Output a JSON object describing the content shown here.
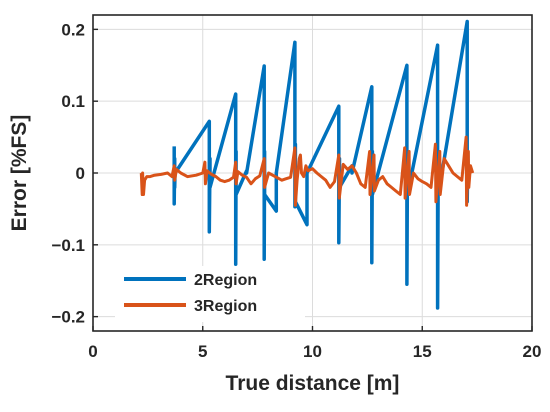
{
  "chart_data": {
    "type": "line",
    "xlabel": "True distance [m]",
    "ylabel": "Error [%FS]",
    "xlim": [
      0,
      20
    ],
    "ylim": [
      -0.22,
      0.22
    ],
    "xticks": [
      0,
      5,
      10,
      15,
      20
    ],
    "yticks": [
      -0.2,
      -0.1,
      0,
      0.1,
      0.2
    ],
    "xtick_labels": [
      "0",
      "5",
      "10",
      "15",
      "20"
    ],
    "ytick_labels": [
      "−0.2",
      "−0.1",
      "0",
      "0.1",
      "0.2"
    ],
    "grid": true,
    "legend_position": "lower-left",
    "series": [
      {
        "name": "2Region",
        "color": "#0072BD",
        "x": [
          3.7,
          3.7,
          3.72,
          3.72,
          3.74,
          3.74,
          5.3,
          5.3,
          5.33,
          5.33,
          6.5,
          6.5,
          6.52,
          6.52,
          7.0,
          7.0,
          7.8,
          7.8,
          7.82,
          7.82,
          8.35,
          8.35,
          9.2,
          9.2,
          9.22,
          9.22,
          9.75,
          9.75,
          11.2,
          11.2,
          11.23,
          11.23,
          11.8,
          11.8,
          12.7,
          12.7,
          12.73,
          12.73,
          14.3,
          14.3,
          14.33,
          14.33,
          15.7,
          15.7,
          15.73,
          15.73,
          17.05,
          17.05,
          17.08,
          17.08
        ],
        "y": [
          0.037,
          -0.043,
          0.02,
          -0.02,
          0.005,
          0.0,
          0.072,
          -0.082,
          0.02,
          -0.02,
          0.11,
          -0.127,
          0.03,
          -0.03,
          0.003,
          0.0,
          0.149,
          -0.12,
          0.03,
          -0.03,
          -0.053,
          0.0,
          0.182,
          -0.047,
          0.04,
          -0.04,
          -0.072,
          0.0,
          0.093,
          -0.097,
          0.02,
          -0.02,
          0.01,
          0.0,
          0.12,
          -0.125,
          0.03,
          -0.03,
          0.15,
          -0.155,
          0.03,
          -0.03,
          0.178,
          -0.188,
          0.03,
          -0.03,
          0.211,
          -0.04,
          0.03,
          0.0
        ]
      },
      {
        "name": "3Region",
        "color": "#D95319",
        "x": [
          2.2,
          2.24,
          2.26,
          2.3,
          2.35,
          2.45,
          2.6,
          2.8,
          3.1,
          3.4,
          3.6,
          3.7,
          3.72,
          3.8,
          4.0,
          4.3,
          4.7,
          5.0,
          5.1,
          5.12,
          5.2,
          5.4,
          5.6,
          5.8,
          6.0,
          6.2,
          6.4,
          6.5,
          6.52,
          6.6,
          6.8,
          7.0,
          7.2,
          7.4,
          7.6,
          7.8,
          7.82,
          8.0,
          8.3,
          8.6,
          8.8,
          9.0,
          9.2,
          9.22,
          9.3,
          9.4,
          9.45,
          9.5,
          9.6,
          9.7,
          9.8,
          10.0,
          10.2,
          10.4,
          10.6,
          10.8,
          11.0,
          11.2,
          11.22,
          11.4,
          11.6,
          11.8,
          12.0,
          12.2,
          12.4,
          12.6,
          12.62,
          12.8,
          12.82,
          13.0,
          13.2,
          13.4,
          13.6,
          13.8,
          14.0,
          14.2,
          14.22,
          14.4,
          14.42,
          14.6,
          14.8,
          15.0,
          15.2,
          15.4,
          15.6,
          15.62,
          15.8,
          15.82,
          16.0,
          16.2,
          16.4,
          16.6,
          16.8,
          17.0,
          17.02,
          17.1,
          17.12,
          17.2,
          17.3
        ],
        "y": [
          0.0,
          -0.03,
          0.0,
          -0.03,
          -0.01,
          -0.005,
          -0.005,
          -0.003,
          -0.002,
          0.0,
          -0.005,
          0.01,
          -0.01,
          0.005,
          0.0,
          -0.005,
          -0.003,
          0.0,
          0.015,
          -0.015,
          0.003,
          -0.002,
          -0.005,
          -0.01,
          -0.012,
          -0.01,
          -0.006,
          0.015,
          -0.015,
          0.002,
          -0.003,
          -0.006,
          -0.015,
          -0.008,
          -0.004,
          0.02,
          -0.02,
          0.0,
          -0.005,
          -0.01,
          -0.008,
          -0.006,
          0.035,
          -0.045,
          -0.01,
          0.02,
          0.025,
          0.0,
          -0.005,
          0.01,
          0.003,
          0.006,
          0.0,
          -0.005,
          -0.01,
          -0.02,
          -0.012,
          0.025,
          -0.035,
          0.012,
          0.005,
          0.01,
          0.0,
          -0.015,
          -0.02,
          0.03,
          -0.03,
          0.025,
          -0.025,
          -0.01,
          -0.005,
          -0.015,
          -0.02,
          -0.025,
          -0.03,
          0.035,
          -0.035,
          0.03,
          -0.03,
          0.0,
          -0.008,
          -0.012,
          -0.015,
          -0.02,
          0.04,
          -0.04,
          0.03,
          -0.03,
          0.02,
          0.01,
          0.0,
          -0.005,
          -0.01,
          0.05,
          -0.045,
          0.03,
          -0.02,
          0.01,
          0.0
        ]
      }
    ]
  }
}
